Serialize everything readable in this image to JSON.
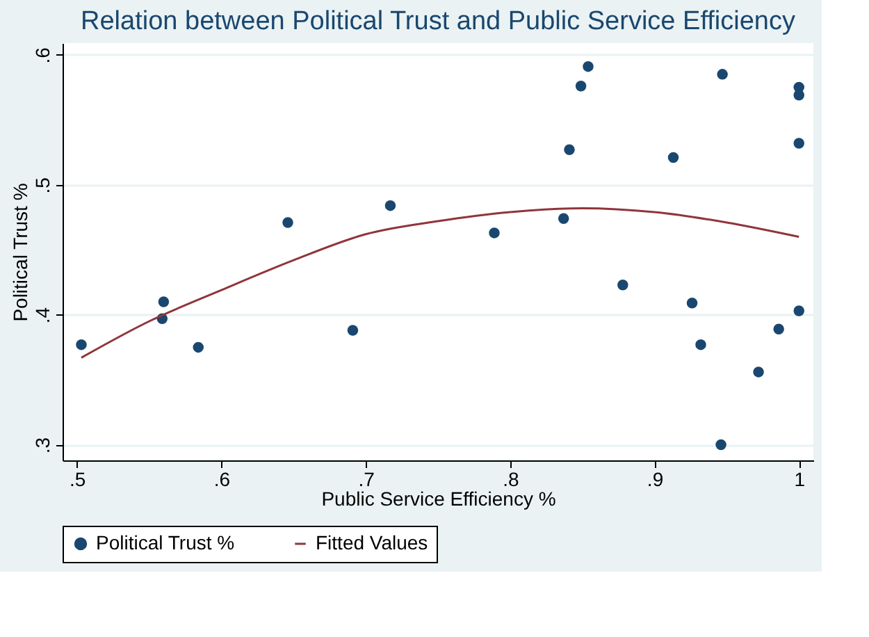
{
  "chart_data": {
    "type": "scatter",
    "title": "Relation between Political Trust and Public Service Efficiency",
    "xlabel": "Public Service Efficiency %",
    "ylabel": "Political Trust %",
    "xlim": [
      0.49,
      1.01
    ],
    "ylim": [
      0.288,
      0.609
    ],
    "xticks": [
      {
        "value": 0.5,
        "label": ".5"
      },
      {
        "value": 0.6,
        "label": ".6"
      },
      {
        "value": 0.7,
        "label": ".7"
      },
      {
        "value": 0.8,
        "label": ".8"
      },
      {
        "value": 0.9,
        "label": ".9"
      },
      1
    ],
    "yticks": [
      {
        "value": 0.3,
        "label": ".3"
      },
      {
        "value": 0.4,
        "label": ".4"
      },
      {
        "value": 0.5,
        "label": ".5"
      },
      {
        "value": 0.6,
        "label": ".6"
      }
    ],
    "grid": "y",
    "legend": "bottom",
    "series": [
      {
        "name": "Political Trust %",
        "marker": "circle",
        "color": "#1a476f",
        "x": [
          0.503,
          0.56,
          0.559,
          0.584,
          0.646,
          0.691,
          0.717,
          0.789,
          0.837,
          0.841,
          0.849,
          0.854,
          0.878,
          0.913,
          0.926,
          0.932,
          0.947,
          0.946,
          0.972,
          0.986,
          1.0,
          1.0,
          1.0,
          1.0
        ],
        "values": [
          0.377,
          0.41,
          0.397,
          0.375,
          0.471,
          0.388,
          0.484,
          0.463,
          0.474,
          0.527,
          0.576,
          0.591,
          0.423,
          0.521,
          0.409,
          0.377,
          0.585,
          0.3,
          0.356,
          0.389,
          0.403,
          0.532,
          0.569,
          0.575
        ]
      },
      {
        "name": "Fitted Values",
        "type": "line",
        "marker": "none",
        "line_style": "solid",
        "color": "#90353b",
        "x": [
          0.503,
          0.55,
          0.6,
          0.65,
          0.7,
          0.75,
          0.8,
          0.85,
          0.9,
          0.95,
          1.0
        ],
        "values": [
          0.367,
          0.395,
          0.419,
          0.442,
          0.462,
          0.472,
          0.479,
          0.482,
          0.479,
          0.471,
          0.46
        ]
      }
    ]
  }
}
